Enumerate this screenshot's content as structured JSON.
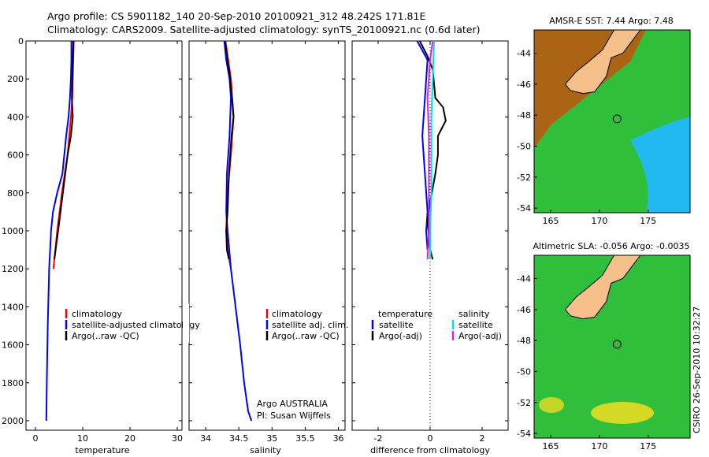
{
  "header": {
    "line1": "Argo profile: CS 5901182_140 20-Sep-2010 20100921_312 48.242S 171.81E",
    "line2": "Climatology: CARS2009. Satellite-adjusted climatology: synTS_20100921.nc (0.6d later)"
  },
  "side_stamp": "CSIRO 26-Sep-2010 10:32:27",
  "colors": {
    "climatology": "#ff0000",
    "satellite": "#0000ff",
    "argo": "#000000",
    "sat_salinity": "#00e0e0",
    "argo_salinity": "#e020e0",
    "land": "#f5c08a",
    "sst_warm": "#b85a10",
    "sst_mid": "#2fbf3a",
    "sst_cool": "#22b8f0"
  },
  "chart_data": [
    {
      "type": "line",
      "id": "temperature",
      "xlabel": "temperature",
      "ylabel": "",
      "xlim": [
        -2,
        31
      ],
      "ylim": [
        2050,
        0
      ],
      "y_reversed": true,
      "xticks": [
        0,
        10,
        20,
        30
      ],
      "yticks": [
        0,
        200,
        400,
        600,
        800,
        1000,
        1200,
        1400,
        1600,
        1800,
        2000
      ],
      "legend": [
        "climatology",
        "satellite-adjusted climatology",
        "Argo(..raw -QC)"
      ],
      "legend_position": "lower-right",
      "series": [
        {
          "name": "climatology",
          "color": "#ff0000",
          "x": [
            8.1,
            8.0,
            7.8,
            7.5,
            6.8,
            5.6,
            4.6,
            3.8
          ],
          "y": [
            0,
            100,
            300,
            400,
            600,
            800,
            1000,
            1200
          ]
        },
        {
          "name": "satellite-adjusted climatology",
          "color": "#0000ff",
          "x": [
            7.6,
            7.6,
            7.5,
            7.3,
            7.0,
            6.5,
            5.7,
            4.6,
            3.7,
            3.3,
            2.9,
            2.6,
            2.4,
            2.3
          ],
          "y": [
            0,
            100,
            200,
            300,
            400,
            500,
            700,
            800,
            900,
            1000,
            1200,
            1500,
            1800,
            2000
          ]
        },
        {
          "name": "Argo(..raw -QC)",
          "color": "#000000",
          "x": [
            8.0,
            7.9,
            7.7,
            7.9,
            7.5,
            6.8,
            5.8,
            4.8,
            4.0
          ],
          "y": [
            0,
            100,
            300,
            400,
            500,
            600,
            800,
            1000,
            1150
          ]
        }
      ]
    },
    {
      "type": "line",
      "id": "salinity",
      "xlabel": "salinity",
      "ylabel": "",
      "xlim": [
        33.75,
        36.1
      ],
      "ylim": [
        2050,
        0
      ],
      "y_reversed": true,
      "xticks": [
        34,
        34.5,
        35,
        35.5,
        36
      ],
      "yticks": [
        0,
        200,
        400,
        600,
        800,
        1000,
        1200,
        1400,
        1600,
        1800,
        2000
      ],
      "legend": [
        "climatology",
        "satellite adj. clim.",
        "Argo(..raw -QC)"
      ],
      "legend_position": "lower-right",
      "annotation": [
        "Argo AUSTRALIA",
        "PI: Susan Wijffels"
      ],
      "series": [
        {
          "name": "climatology",
          "color": "#ff0000",
          "x": [
            34.3,
            34.34,
            34.38,
            34.42,
            34.38,
            34.33,
            34.31,
            34.33,
            34.38
          ],
          "y": [
            0,
            100,
            200,
            400,
            600,
            800,
            1000,
            1100,
            1200
          ]
        },
        {
          "name": "satellite adj. clim.",
          "color": "#0000ff",
          "x": [
            34.28,
            34.31,
            34.36,
            34.38,
            34.36,
            34.32,
            34.31,
            34.33,
            34.38,
            34.45,
            34.52,
            34.58,
            34.64,
            34.69
          ],
          "y": [
            0,
            100,
            200,
            300,
            500,
            700,
            900,
            1000,
            1200,
            1400,
            1600,
            1800,
            1950,
            2000
          ]
        },
        {
          "name": "Argo(..raw -QC)",
          "color": "#000000",
          "x": [
            34.29,
            34.33,
            34.37,
            34.42,
            34.39,
            34.35,
            34.33,
            34.31,
            34.32,
            34.35
          ],
          "y": [
            0,
            100,
            200,
            400,
            500,
            700,
            900,
            1000,
            1100,
            1150
          ]
        }
      ]
    },
    {
      "type": "line",
      "id": "difference",
      "xlabel": "difference from climatology",
      "ylabel": "",
      "xlim": [
        -3,
        3
      ],
      "ylim": [
        2050,
        0
      ],
      "y_reversed": true,
      "xticks": [
        -2,
        0,
        2
      ],
      "yticks": [
        0,
        200,
        400,
        600,
        800,
        1000,
        1200,
        1400,
        1600,
        1800,
        2000
      ],
      "legend_groups": [
        {
          "title": "temperature",
          "items": [
            "satellite",
            "Argo(-adj)"
          ]
        },
        {
          "title": "salinity",
          "items": [
            "satellite",
            "Argo(-adj)"
          ]
        }
      ],
      "series": [
        {
          "name": "temperature satellite",
          "color": "#0000ff",
          "x": [
            -0.5,
            -0.3,
            -0.1,
            -0.2,
            -0.3,
            -0.2,
            -0.1,
            -0.15,
            -0.1
          ],
          "y": [
            0,
            50,
            100,
            300,
            500,
            700,
            900,
            1000,
            1100
          ]
        },
        {
          "name": "temperature Argo(-adj)",
          "color": "#000000",
          "x": [
            -0.4,
            -0.1,
            0.1,
            0.2,
            0.5,
            0.6,
            0.3,
            0.3,
            0.2,
            0.0,
            -0.1,
            0.0,
            0.1
          ],
          "y": [
            0,
            80,
            150,
            300,
            350,
            420,
            500,
            600,
            700,
            850,
            950,
            1100,
            1150
          ]
        },
        {
          "name": "salinity satellite",
          "color": "#00e0e0",
          "x": [
            0.15,
            0.1,
            0.05,
            0.05,
            0.05,
            0.0,
            0.0
          ],
          "y": [
            0,
            200,
            400,
            600,
            800,
            1000,
            1150
          ]
        },
        {
          "name": "salinity Argo(-adj)",
          "color": "#e020e0",
          "x": [
            0.1,
            0.0,
            -0.1,
            -0.05,
            -0.05,
            -0.05,
            -0.1
          ],
          "y": [
            0,
            100,
            300,
            500,
            800,
            1000,
            1150
          ]
        }
      ]
    },
    {
      "type": "heatmap",
      "id": "sst_map",
      "title": "AMSR-E SST: 7.44 Argo: 7.48",
      "xticks": [
        165,
        170,
        175
      ],
      "yticks": [
        -44,
        -46,
        -48,
        -50,
        -52,
        -54
      ],
      "profile_location": [
        171.81,
        -48.242
      ]
    },
    {
      "type": "heatmap",
      "id": "sla_map",
      "title": "Altimetric SLA: -0.056 Argo: -0.0035",
      "xticks": [
        165,
        170,
        175
      ],
      "yticks": [
        -44,
        -46,
        -48,
        -50,
        -52,
        -54
      ],
      "profile_location": [
        171.81,
        -48.242
      ]
    }
  ]
}
